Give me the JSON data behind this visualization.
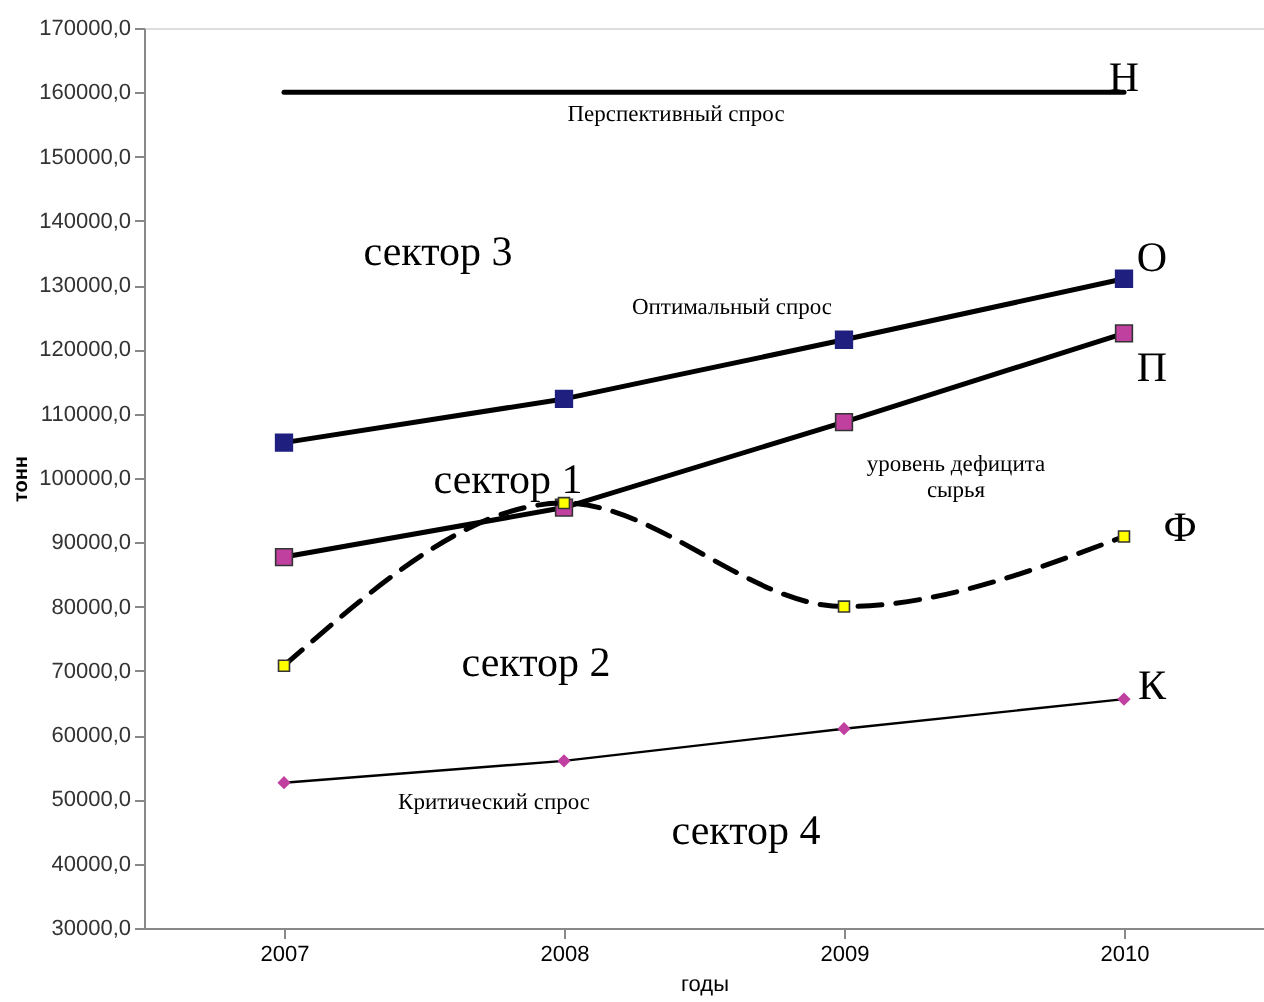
{
  "chart_data": {
    "type": "line",
    "x": [
      2007,
      2008,
      2009,
      2010
    ],
    "xlim": [
      2006.5,
      2010.5
    ],
    "xticks": [
      2007,
      2008,
      2009,
      2010
    ],
    "xlabel": "годы",
    "ylabel": "тонн",
    "ylim": [
      30000,
      170000
    ],
    "yticks": [
      {
        "value": 30000,
        "label": "30000,0"
      },
      {
        "value": 40000,
        "label": "40000,0"
      },
      {
        "value": 50000,
        "label": "50000,0"
      },
      {
        "value": 60000,
        "label": "60000,0"
      },
      {
        "value": 70000,
        "label": "70000,0"
      },
      {
        "value": 80000,
        "label": "80000,0"
      },
      {
        "value": 90000,
        "label": "90000,0"
      },
      {
        "value": 100000,
        "label": "100000,0"
      },
      {
        "value": 110000,
        "label": "110000,0"
      },
      {
        "value": 120000,
        "label": "120000,0"
      },
      {
        "value": 130000,
        "label": "130000,0"
      },
      {
        "value": 140000,
        "label": "140000,0"
      },
      {
        "value": 150000,
        "label": "150000,0"
      },
      {
        "value": 160000,
        "label": "160000,0"
      },
      {
        "value": 170000,
        "label": "170000,0"
      }
    ],
    "grid": false,
    "series": [
      {
        "color": "#000000",
        "marker": "none",
        "line_style": "solid",
        "values": [
          160000,
          160000,
          160000,
          160000
        ]
      },
      {
        "color": "#1f1f80",
        "marker": "square",
        "line_style": "solid",
        "values": [
          105500,
          112300,
          121500,
          131000
        ]
      },
      {
        "color": "#c040a0",
        "marker": "square",
        "line_style": "solid",
        "values": [
          87700,
          95400,
          108700,
          122500
        ]
      },
      {
        "color": "#ffff00",
        "marker": "square",
        "line_style": "dashed",
        "values": [
          70800,
          96100,
          80000,
          90900
        ]
      },
      {
        "color": "#c040a0",
        "marker": "diamond",
        "line_style": "solid",
        "values": [
          52600,
          56000,
          61000,
          65600
        ]
      }
    ],
    "annotations": [
      "Н",
      "Перспективный спрос",
      "сектор 3",
      "О",
      "Оптимальный спрос",
      "П",
      "сектор 1",
      "уровень дефицита\nсырья",
      "Ф",
      "сектор 2",
      "К",
      "Критический спрос",
      "сектор 4"
    ]
  }
}
